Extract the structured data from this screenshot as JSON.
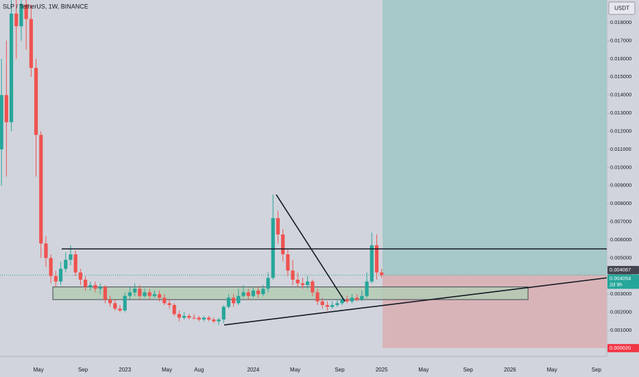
{
  "chart_data": {
    "type": "candlestick",
    "title": "SLP / TetherUS, 1W, BINANCE",
    "y_unit": "USDT",
    "up_color": "#26a69a",
    "down_color": "#ef5350",
    "xlim": [
      1.4,
      247.2
    ],
    "ylim": [
      -0.00044,
      0.01925
    ],
    "xticks": [
      {
        "value": 17,
        "label": "May"
      },
      {
        "value": 35,
        "label": "Sep"
      },
      {
        "value": 52,
        "label": "2023"
      },
      {
        "value": 69,
        "label": "May"
      },
      {
        "value": 82,
        "label": "Aug"
      },
      {
        "value": 104,
        "label": "2024"
      },
      {
        "value": 121,
        "label": "May"
      },
      {
        "value": 139,
        "label": "Sep"
      },
      {
        "value": 156,
        "label": "2025"
      },
      {
        "value": 173,
        "label": "May"
      },
      {
        "value": 191,
        "label": "Sep"
      },
      {
        "value": 208,
        "label": "2026"
      },
      {
        "value": 225,
        "label": "May"
      },
      {
        "value": 243,
        "label": "Sep"
      }
    ],
    "yticks": [
      {
        "value": 0.001,
        "label": "0.001000"
      },
      {
        "value": 0.002,
        "label": "0.002000"
      },
      {
        "value": 0.003,
        "label": "0.003000"
      },
      {
        "value": 0.004,
        "label": "0.004000"
      },
      {
        "value": 0.005,
        "label": "0.005000"
      },
      {
        "value": 0.006,
        "label": "0.006000"
      },
      {
        "value": 0.007,
        "label": "0.007000"
      },
      {
        "value": 0.008,
        "label": "0.008000"
      },
      {
        "value": 0.009,
        "label": "0.009000"
      },
      {
        "value": 0.01,
        "label": "0.010000"
      },
      {
        "value": 0.011,
        "label": "0.011000"
      },
      {
        "value": 0.012,
        "label": "0.012000"
      },
      {
        "value": 0.013,
        "label": "0.013000"
      },
      {
        "value": 0.014,
        "label": "0.014000"
      },
      {
        "value": 0.015,
        "label": "0.015000"
      },
      {
        "value": 0.016,
        "label": "0.016000"
      },
      {
        "value": 0.017,
        "label": "0.017000"
      },
      {
        "value": 0.018,
        "label": "0.018000"
      }
    ],
    "x": [
      2,
      4,
      6,
      8,
      10,
      12,
      14,
      16,
      18,
      20,
      22,
      24,
      26,
      28,
      30,
      32,
      34,
      36,
      38,
      40,
      42,
      44,
      46,
      48,
      50,
      52,
      54,
      56,
      58,
      60,
      62,
      64,
      66,
      68,
      70,
      72,
      74,
      76,
      78,
      80,
      82,
      84,
      86,
      88,
      90,
      92,
      94,
      96,
      98,
      100,
      102,
      104,
      106,
      108,
      110,
      112,
      114,
      116,
      118,
      120,
      122,
      124,
      126,
      128,
      130,
      132,
      134,
      136,
      138,
      140,
      142,
      144,
      146,
      148,
      150,
      152,
      154,
      156
    ],
    "open": [
      0.011,
      0.014,
      0.0125,
      0.0185,
      0.0178,
      0.019,
      0.0182,
      0.0155,
      0.0118,
      0.0058,
      0.005,
      0.004,
      0.0037,
      0.0044,
      0.0049,
      0.0052,
      0.0042,
      0.0038,
      0.0034,
      0.0035,
      0.0033,
      0.0034,
      0.0027,
      0.0025,
      0.0022,
      0.0021,
      0.0029,
      0.0031,
      0.0033,
      0.0029,
      0.0031,
      0.0029,
      0.003,
      0.0028,
      0.0025,
      0.0024,
      0.0019,
      0.0017,
      0.0018,
      0.0017,
      0.0017,
      0.0016,
      0.0017,
      0.0016,
      0.0015,
      0.0016,
      0.0023,
      0.0028,
      0.0025,
      0.0029,
      0.0031,
      0.0029,
      0.0032,
      0.003,
      0.0033,
      0.0039,
      0.0072,
      0.0063,
      0.0052,
      0.0043,
      0.0038,
      0.0036,
      0.0035,
      0.0037,
      0.0031,
      0.0026,
      0.0024,
      0.0023,
      0.0024,
      0.0025,
      0.0027,
      0.0026,
      0.0028,
      0.0027,
      0.0029,
      0.0037,
      0.0057,
      0.0042
    ],
    "high": [
      0.016,
      0.017,
      0.02,
      0.02,
      0.02,
      0.0198,
      0.019,
      0.016,
      0.012,
      0.0062,
      0.0052,
      0.0043,
      0.0048,
      0.0053,
      0.0057,
      0.0054,
      0.0044,
      0.004,
      0.0037,
      0.0037,
      0.0036,
      0.0035,
      0.0029,
      0.0027,
      0.0024,
      0.0031,
      0.0034,
      0.0036,
      0.0035,
      0.0033,
      0.0033,
      0.0032,
      0.0032,
      0.003,
      0.0027,
      0.0025,
      0.0021,
      0.002,
      0.0019,
      0.0019,
      0.0018,
      0.0018,
      0.0018,
      0.0017,
      0.0017,
      0.0024,
      0.003,
      0.003,
      0.0033,
      0.0035,
      0.0033,
      0.0034,
      0.0034,
      0.0035,
      0.0042,
      0.0085,
      0.0076,
      0.0066,
      0.0055,
      0.0049,
      0.0042,
      0.0039,
      0.004,
      0.0038,
      0.0033,
      0.0028,
      0.0026,
      0.0026,
      0.0027,
      0.0029,
      0.0029,
      0.003,
      0.003,
      0.0032,
      0.0042,
      0.0064,
      0.0063,
      0.0044
    ],
    "low": [
      0.009,
      0.0095,
      0.012,
      0.016,
      0.017,
      0.0165,
      0.015,
      0.0095,
      0.005,
      0.0045,
      0.0036,
      0.0034,
      0.0035,
      0.0042,
      0.0046,
      0.004,
      0.0035,
      0.0032,
      0.0032,
      0.0031,
      0.003,
      0.0025,
      0.0023,
      0.0021,
      0.002,
      0.002,
      0.0027,
      0.0029,
      0.0027,
      0.0028,
      0.0027,
      0.0028,
      0.0026,
      0.0024,
      0.0022,
      0.0018,
      0.0015,
      0.0016,
      0.0016,
      0.0016,
      0.0015,
      0.0015,
      0.0015,
      0.0014,
      0.0013,
      0.0014,
      0.0022,
      0.0023,
      0.0024,
      0.0028,
      0.0027,
      0.0028,
      0.0028,
      0.0029,
      0.0031,
      0.0038,
      0.0058,
      0.0048,
      0.004,
      0.0035,
      0.0034,
      0.0033,
      0.0033,
      0.0029,
      0.0024,
      0.0022,
      0.0021,
      0.0022,
      0.0023,
      0.0024,
      0.0025,
      0.0025,
      0.0026,
      0.0026,
      0.0028,
      0.0036,
      0.0038,
      0.0039
    ],
    "close": [
      0.014,
      0.0125,
      0.0185,
      0.0178,
      0.019,
      0.0182,
      0.0155,
      0.0118,
      0.0058,
      0.005,
      0.004,
      0.0037,
      0.0044,
      0.0049,
      0.0052,
      0.0042,
      0.0038,
      0.0034,
      0.0035,
      0.0033,
      0.0034,
      0.0027,
      0.0025,
      0.0022,
      0.0021,
      0.0029,
      0.0031,
      0.0033,
      0.0029,
      0.0031,
      0.0029,
      0.003,
      0.0028,
      0.0025,
      0.0024,
      0.0019,
      0.0017,
      0.0018,
      0.0017,
      0.00168,
      0.0016,
      0.0017,
      0.0016,
      0.0015,
      0.0016,
      0.0023,
      0.0028,
      0.0025,
      0.0029,
      0.0031,
      0.0029,
      0.0032,
      0.003,
      0.0033,
      0.0039,
      0.0072,
      0.0063,
      0.0052,
      0.0043,
      0.0038,
      0.0036,
      0.0035,
      0.0037,
      0.0031,
      0.0026,
      0.0024,
      0.0023,
      0.0024,
      0.0025,
      0.0027,
      0.0026,
      0.0028,
      0.0027,
      0.0029,
      0.0037,
      0.0057,
      0.0042,
      0.00405
    ],
    "price_tags": [
      {
        "value": 0.004067,
        "label": "0.004067",
        "color": "#434651"
      },
      {
        "value": 0.004054,
        "label": "0.004054",
        "color": "#26a69a"
      },
      {
        "value": 2e-05,
        "label": "0.000020",
        "color": "#f23645"
      }
    ],
    "countdown": "2d 9h",
    "position": {
      "x_start": 156.4,
      "target": 0.0193,
      "profit_color": "#a6c8c8",
      "loss_color": "#d8b4b8"
    },
    "zone": {
      "x": [
        22.8,
        215.3
      ],
      "y": [
        0.0027,
        0.0034
      ],
      "color": "#b4cbb4"
    },
    "lines": [
      {
        "x": [
          26.4,
          247.2
        ],
        "y": [
          0.0055,
          0.0055
        ]
      },
      {
        "x": [
          92.2,
          247.2
        ],
        "y": [
          0.0013,
          0.0039
        ]
      },
      {
        "x": [
          113.3,
          141.1
        ],
        "y": [
          0.0085,
          0.0026
        ]
      }
    ]
  }
}
